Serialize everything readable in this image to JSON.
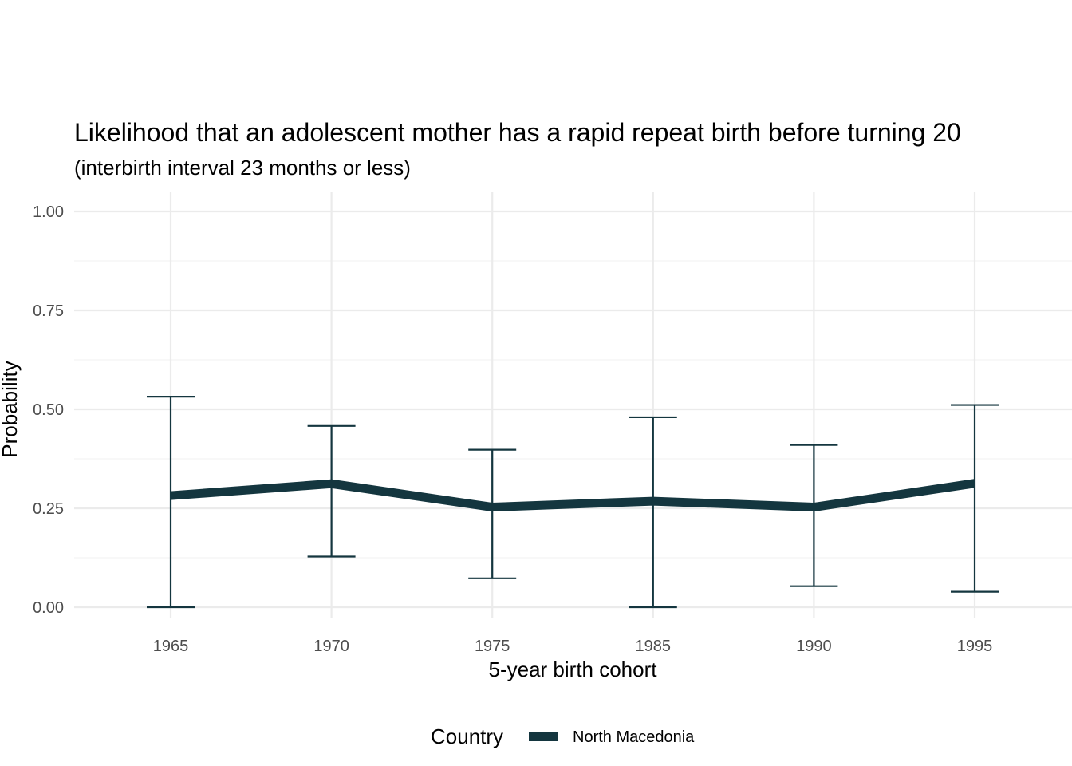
{
  "chart_data": {
    "type": "line",
    "title": "Likelihood that an adolescent mother has a rapid repeat birth before turning 20",
    "subtitle": "(interbirth interval 23 months or less)",
    "xlabel": "5-year birth cohort",
    "ylabel": "Probability",
    "categories": [
      "1965",
      "1970",
      "1975",
      "1985",
      "1990",
      "1995"
    ],
    "y_ticks": [
      "0.00",
      "0.25",
      "0.50",
      "0.75",
      "1.00"
    ],
    "y_tick_values": [
      0,
      0.25,
      0.5,
      0.75,
      1.0
    ],
    "ylim": [
      0,
      1
    ],
    "grid": true,
    "legend": {
      "title": "Country",
      "position": "bottom"
    },
    "series": [
      {
        "name": "North Macedonia",
        "color": "#14363f",
        "values": [
          0.282,
          0.312,
          0.253,
          0.268,
          0.253,
          0.313
        ],
        "lower": [
          0.0,
          0.128,
          0.073,
          0.0,
          0.053,
          0.039
        ],
        "upper": [
          0.532,
          0.458,
          0.398,
          0.48,
          0.41,
          0.511
        ]
      }
    ]
  }
}
